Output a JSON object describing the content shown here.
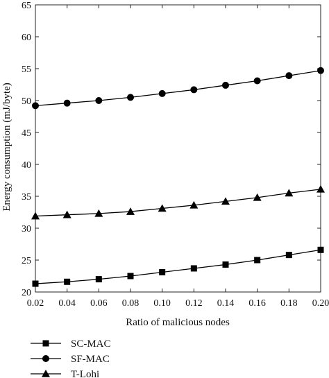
{
  "chart_data": {
    "type": "line",
    "title": "",
    "xlabel": "Ratio of malicious nodes",
    "ylabel": "Energy consumption (mJ/byte)",
    "x": [
      0.02,
      0.04,
      0.06,
      0.08,
      0.1,
      0.12,
      0.14,
      0.16,
      0.18,
      0.2
    ],
    "x_tick_labels": [
      "0.02",
      "0.04",
      "0.06",
      "0.08",
      "0.10",
      "0.12",
      "0.14",
      "0.16",
      "0.18",
      "0.20"
    ],
    "y_tick_labels": [
      "20",
      "25",
      "30",
      "35",
      "40",
      "45",
      "50",
      "55",
      "60",
      "65"
    ],
    "xlim": [
      0.02,
      0.2
    ],
    "ylim": [
      20,
      65
    ],
    "grid": false,
    "legend_position": "below-left",
    "series": [
      {
        "name": "SC-MAC",
        "marker": "square",
        "color": "#000000",
        "values": [
          21.3,
          21.6,
          22.0,
          22.5,
          23.1,
          23.7,
          24.3,
          25.0,
          25.8,
          26.6
        ]
      },
      {
        "name": "SF-MAC",
        "marker": "circle",
        "color": "#000000",
        "values": [
          49.2,
          49.6,
          50.0,
          50.5,
          51.1,
          51.7,
          52.4,
          53.1,
          53.9,
          54.7
        ]
      },
      {
        "name": "T-Lohi",
        "marker": "triangle",
        "color": "#000000",
        "values": [
          31.9,
          32.1,
          32.3,
          32.6,
          33.1,
          33.6,
          34.2,
          34.8,
          35.5,
          36.1
        ]
      }
    ]
  }
}
